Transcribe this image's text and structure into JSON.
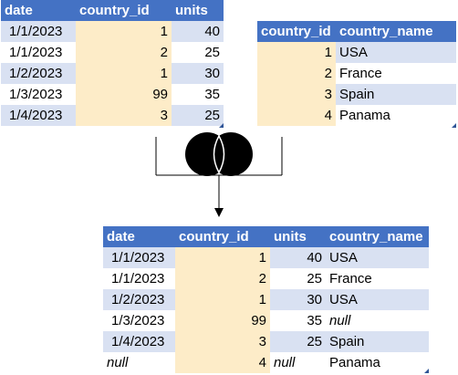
{
  "dates_table": {
    "headers": [
      "date",
      "country_id",
      "units"
    ],
    "rows": [
      [
        "1/1/2023",
        "1",
        "40"
      ],
      [
        "1/1/2023",
        "2",
        "25"
      ],
      [
        "1/2/2023",
        "1",
        "30"
      ],
      [
        "1/3/2023",
        "99",
        "35"
      ],
      [
        "1/4/2023",
        "3",
        "25"
      ]
    ]
  },
  "countries_table": {
    "headers": [
      "country_id",
      "country_name"
    ],
    "rows": [
      [
        "1",
        "USA"
      ],
      [
        "2",
        "France"
      ],
      [
        "3",
        "Spain"
      ],
      [
        "4",
        "Panama"
      ]
    ]
  },
  "join_icon": "full-outer-join-venn-icon",
  "result_table": {
    "headers": [
      "date",
      "country_id",
      "units",
      "country_name"
    ],
    "rows": [
      [
        "1/1/2023",
        "1",
        "40",
        "USA"
      ],
      [
        "1/1/2023",
        "2",
        "25",
        "France"
      ],
      [
        "1/2/2023",
        "1",
        "30",
        "USA"
      ],
      [
        "1/3/2023",
        "99",
        "35",
        "null"
      ],
      [
        "1/4/2023",
        "3",
        "25",
        "Spain"
      ],
      [
        "null",
        "4",
        "null",
        "Panama"
      ]
    ]
  },
  "colors": {
    "header": "#4472c4",
    "band": "#d9e1f2",
    "key_column": "#fdecc8",
    "venn_fill": "#000000"
  }
}
